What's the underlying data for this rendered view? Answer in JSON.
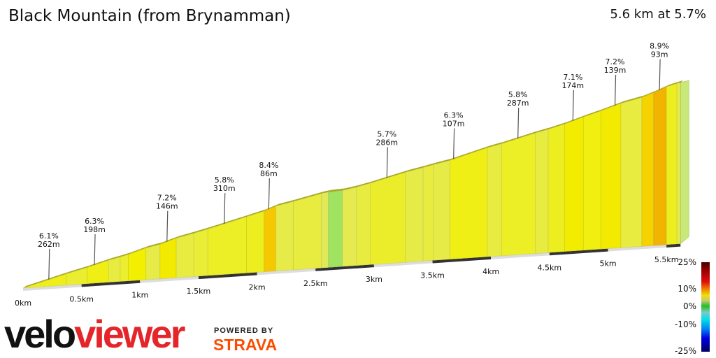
{
  "header": {
    "title": "Black Mountain (from Brynamman)",
    "summary": "5.6 km at 5.7%"
  },
  "chart_data": {
    "type": "area",
    "title": "Black Mountain (from Brynamman)",
    "x_unit": "km",
    "xlim": [
      0,
      5.6
    ],
    "x_tick_labels": [
      "0km",
      "0.5km",
      "1km",
      "1.5km",
      "2km",
      "2.5km",
      "3km",
      "3.5km",
      "4km",
      "4.5km",
      "5km",
      "5.5km"
    ],
    "x_ticks": [
      0,
      0.5,
      1,
      1.5,
      2,
      2.5,
      3,
      3.5,
      4,
      4.5,
      5,
      5.5
    ],
    "segments": [
      {
        "start": 0,
        "end": 0.37,
        "gradient": 6.1
      },
      {
        "start": 0.37,
        "end": 0.55,
        "gradient": 5.5
      },
      {
        "start": 0.55,
        "end": 0.73,
        "gradient": 6.3
      },
      {
        "start": 0.73,
        "end": 0.83,
        "gradient": 5.0
      },
      {
        "start": 0.83,
        "end": 0.9,
        "gradient": 5.5
      },
      {
        "start": 0.9,
        "end": 1.05,
        "gradient": 7.0
      },
      {
        "start": 1.05,
        "end": 1.17,
        "gradient": 4.5
      },
      {
        "start": 1.17,
        "end": 1.31,
        "gradient": 7.2
      },
      {
        "start": 1.31,
        "end": 1.46,
        "gradient": 5.0
      },
      {
        "start": 1.46,
        "end": 1.58,
        "gradient": 5.3
      },
      {
        "start": 1.58,
        "end": 1.91,
        "gradient": 5.8
      },
      {
        "start": 1.91,
        "end": 2.06,
        "gradient": 6.0
      },
      {
        "start": 2.06,
        "end": 2.16,
        "gradient": 8.4
      },
      {
        "start": 2.16,
        "end": 2.31,
        "gradient": 4.5
      },
      {
        "start": 2.31,
        "end": 2.55,
        "gradient": 5.0
      },
      {
        "start": 2.55,
        "end": 2.61,
        "gradient": 3.5
      },
      {
        "start": 2.61,
        "end": 2.73,
        "gradient": 1.0
      },
      {
        "start": 2.73,
        "end": 2.85,
        "gradient": 4.0
      },
      {
        "start": 2.85,
        "end": 2.97,
        "gradient": 5.0
      },
      {
        "start": 2.97,
        "end": 3.27,
        "gradient": 5.7
      },
      {
        "start": 3.27,
        "end": 3.42,
        "gradient": 4.5
      },
      {
        "start": 3.42,
        "end": 3.51,
        "gradient": 5.0
      },
      {
        "start": 3.51,
        "end": 3.65,
        "gradient": 4.5
      },
      {
        "start": 3.65,
        "end": 3.97,
        "gradient": 6.3
      },
      {
        "start": 3.97,
        "end": 4.09,
        "gradient": 5.0
      },
      {
        "start": 4.09,
        "end": 4.38,
        "gradient": 5.8
      },
      {
        "start": 4.38,
        "end": 4.49,
        "gradient": 5.0
      },
      {
        "start": 4.49,
        "end": 4.63,
        "gradient": 6.0
      },
      {
        "start": 4.63,
        "end": 4.79,
        "gradient": 7.1
      },
      {
        "start": 4.79,
        "end": 4.94,
        "gradient": 6.5
      },
      {
        "start": 4.94,
        "end": 5.11,
        "gradient": 7.2
      },
      {
        "start": 5.11,
        "end": 5.29,
        "gradient": 5.0
      },
      {
        "start": 5.29,
        "end": 5.39,
        "gradient": 8.0
      },
      {
        "start": 5.39,
        "end": 5.5,
        "gradient": 8.9
      },
      {
        "start": 5.5,
        "end": 5.59,
        "gradient": 6.0
      },
      {
        "start": 5.59,
        "end": 5.62,
        "gradient": 4.0
      }
    ],
    "annotations": [
      {
        "km": 0.22,
        "gradient": "6.1%",
        "length": "262m"
      },
      {
        "km": 0.61,
        "gradient": "6.3%",
        "length": "198m"
      },
      {
        "km": 1.23,
        "gradient": "7.2%",
        "length": "146m"
      },
      {
        "km": 1.72,
        "gradient": "5.8%",
        "length": "310m"
      },
      {
        "km": 2.1,
        "gradient": "8.4%",
        "length": "86m"
      },
      {
        "km": 3.11,
        "gradient": "5.7%",
        "length": "286m"
      },
      {
        "km": 3.68,
        "gradient": "6.3%",
        "length": "107m"
      },
      {
        "km": 4.23,
        "gradient": "5.8%",
        "length": "287m"
      },
      {
        "km": 4.7,
        "gradient": "7.1%",
        "length": "174m"
      },
      {
        "km": 5.06,
        "gradient": "7.2%",
        "length": "139m"
      },
      {
        "km": 5.44,
        "gradient": "8.9%",
        "length": "93m"
      }
    ],
    "legend": {
      "placement": "bottom-right",
      "labels": [
        "25%",
        "10%",
        "0%",
        "-10%",
        "-25%"
      ]
    }
  },
  "branding": {
    "logo_part1": "velo",
    "logo_part2": "viewer",
    "powered_by": "POWERED BY",
    "strava": "STRAVA"
  },
  "colors": {
    "logo_red": "#e4262b",
    "strava_orange": "#fc4c02"
  }
}
